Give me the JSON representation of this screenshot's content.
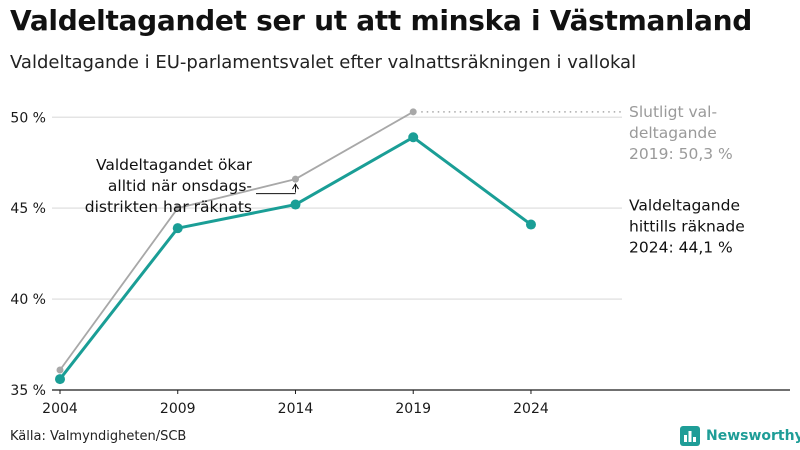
{
  "header": {
    "title": "Valdeltagandet ser ut att minska i Västmanland",
    "subtitle": "Valdeltagande i EU-parlamentsvalet efter valnattsräkningen i vallokal"
  },
  "footer": {
    "source": "Källa: Valmyndigheten/SCB",
    "brand": "Newsworthy",
    "brand_icon": "bar-chart-logo-icon"
  },
  "colors": {
    "main_line": "#1a9e96",
    "final_line": "#a8a8a8",
    "grid": "#e4e4e4",
    "axis": "#1a1a1a",
    "annotation": "#111111",
    "final_annotation": "#9a9a9a"
  },
  "chart_data": {
    "type": "line",
    "x": [
      2004,
      2009,
      2014,
      2019,
      2024
    ],
    "xticks": [
      "2004",
      "2009",
      "2014",
      "2019",
      "2024"
    ],
    "yticks": [
      "35 %",
      "40 %",
      "45 %",
      "50 %"
    ],
    "ytick_values": [
      35,
      40,
      45,
      50
    ],
    "ylim": [
      35,
      51.5
    ],
    "xlim": [
      2004,
      2035
    ],
    "grid": true,
    "series": [
      {
        "id": "final",
        "values": [
          36.1,
          45.0,
          46.6,
          50.3,
          null
        ]
      },
      {
        "id": "election_night",
        "values": [
          35.6,
          43.9,
          45.2,
          48.9,
          44.1
        ]
      }
    ],
    "annotations": {
      "final_2019": [
        "Slutligt val-",
        "deltagande",
        "2019: 50,3 %"
      ],
      "night_2024": [
        "Valdeltagande",
        "hittills räknade",
        "2024: 44,1 %"
      ],
      "note": [
        "Valdeltagandet ökar",
        "alltid när onsdags-",
        "distrikten har räknats"
      ]
    }
  }
}
